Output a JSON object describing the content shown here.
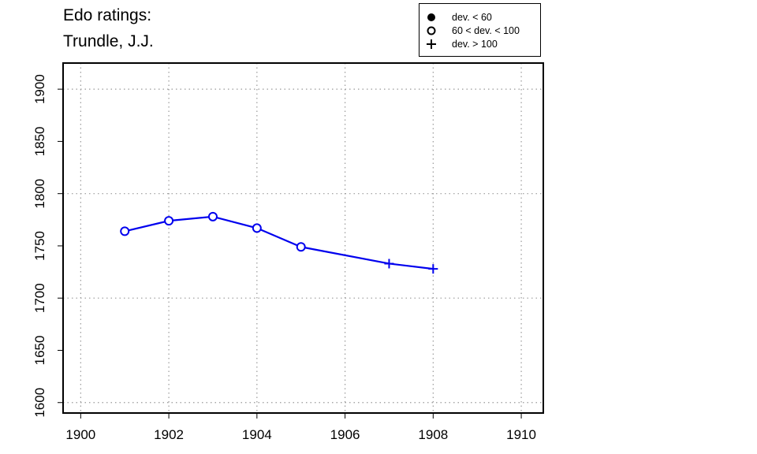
{
  "chart_data": {
    "type": "line",
    "title_lines": [
      "Edo ratings:",
      "Trundle, J.J."
    ],
    "xlabel": "",
    "ylabel": "",
    "xlim": [
      1899.6,
      1910.5
    ],
    "ylim": [
      1590,
      1925
    ],
    "x_ticks": [
      1900,
      1902,
      1904,
      1906,
      1908,
      1910
    ],
    "y_ticks": [
      1600,
      1650,
      1700,
      1750,
      1800,
      1850,
      1900
    ],
    "grid": true,
    "series": [
      {
        "color": "#0000ee",
        "points": [
          {
            "x": 1901,
            "y": 1764,
            "marker": "open-circle"
          },
          {
            "x": 1902,
            "y": 1774,
            "marker": "open-circle"
          },
          {
            "x": 1903,
            "y": 1778,
            "marker": "open-circle"
          },
          {
            "x": 1904,
            "y": 1767,
            "marker": "open-circle"
          },
          {
            "x": 1905,
            "y": 1749,
            "marker": "open-circle"
          },
          {
            "x": 1907,
            "y": 1733,
            "marker": "plus"
          },
          {
            "x": 1908,
            "y": 1728,
            "marker": "plus"
          }
        ]
      }
    ],
    "legend": {
      "position": "top-right",
      "entries": [
        {
          "label": "dev. < 60",
          "marker": "filled-circle"
        },
        {
          "label": "60 < dev. < 100",
          "marker": "open-circle"
        },
        {
          "label": "dev. > 100",
          "marker": "plus"
        }
      ]
    }
  }
}
